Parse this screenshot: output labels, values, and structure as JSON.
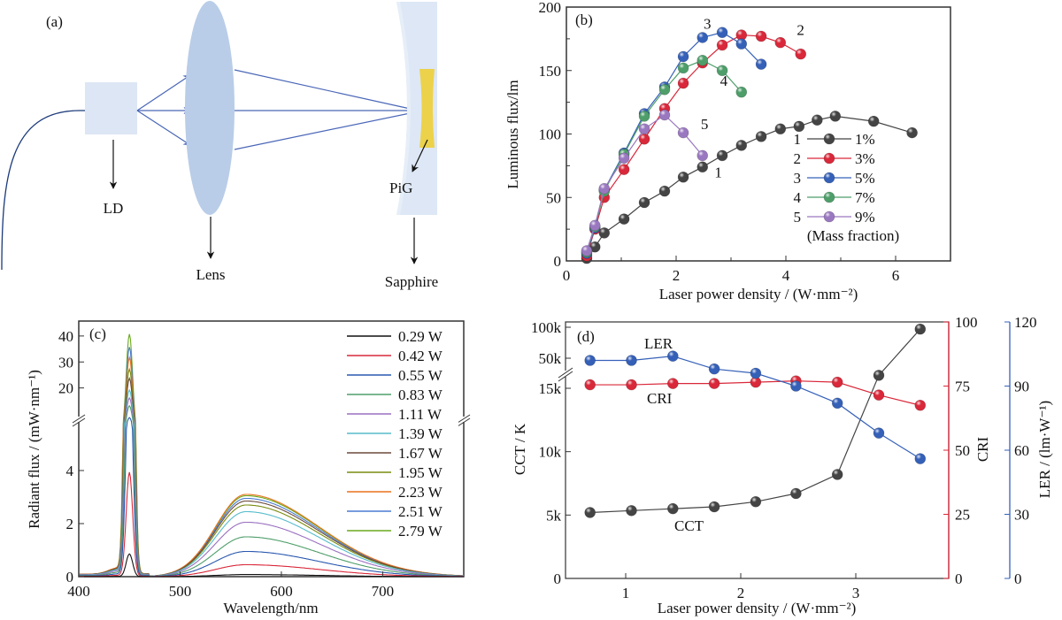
{
  "diagram": {
    "panel_label": "(a)",
    "labels": {
      "ld": "LD",
      "lens": "Lens",
      "pig": "PiG",
      "sapphire": "Sapphire"
    },
    "colors": {
      "ld_block": "#dce6f4",
      "lens": "#b9cde8",
      "sapphire": "#dde7f5",
      "pig": "#ecd24a",
      "beam": "#4a67b8",
      "fiber": "#1b3a7a"
    }
  },
  "chart_data": [
    {
      "id": "b",
      "panel_label": "(b)",
      "type": "line",
      "xlabel": "Laser power density / (W·mm⁻²)",
      "ylabel": "Luminous flux/lm",
      "xlim": [
        0,
        7
      ],
      "ylim": [
        0,
        200
      ],
      "xticks": [
        0,
        2,
        4,
        6
      ],
      "yticks": [
        0,
        50,
        100,
        150,
        200
      ],
      "legend_position": "right",
      "legend_note": "(Mass fraction)",
      "series": [
        {
          "id": "1",
          "name": "1%",
          "color": "#444444",
          "x": [
            0.37,
            0.52,
            0.69,
            1.05,
            1.42,
            1.79,
            2.13,
            2.48,
            2.84,
            3.19,
            3.55,
            3.9,
            4.24,
            4.57,
            4.9,
            5.6,
            6.3
          ],
          "y": [
            2,
            11,
            22,
            33,
            46,
            55,
            66,
            74,
            83,
            91,
            98,
            104,
            106,
            111,
            114,
            110,
            101
          ]
        },
        {
          "id": "2",
          "name": "3%",
          "color": "#d9283a",
          "x": [
            0.37,
            0.52,
            0.69,
            1.05,
            1.42,
            1.79,
            2.13,
            2.48,
            2.84,
            3.19,
            3.55,
            3.9,
            4.27
          ],
          "y": [
            4,
            25,
            50,
            72,
            96,
            120,
            140,
            156,
            170,
            178,
            177,
            172,
            163
          ]
        },
        {
          "id": "3",
          "name": "5%",
          "color": "#3560b8",
          "x": [
            0.37,
            0.52,
            0.69,
            1.05,
            1.42,
            1.79,
            2.13,
            2.48,
            2.84,
            3.19,
            3.55
          ],
          "y": [
            6,
            26,
            56,
            85,
            116,
            137,
            161,
            176,
            180,
            171,
            155
          ]
        },
        {
          "id": "4",
          "name": "7%",
          "color": "#4e9e6a",
          "x": [
            0.37,
            0.52,
            0.69,
            1.05,
            1.42,
            1.79,
            2.13,
            2.48,
            2.84,
            3.19
          ],
          "y": [
            7,
            27,
            55,
            84,
            114,
            135,
            152,
            158,
            150,
            133
          ]
        },
        {
          "id": "5",
          "name": "9%",
          "color": "#9a78c0",
          "x": [
            0.37,
            0.52,
            0.69,
            1.05,
            1.42,
            1.79,
            2.13,
            2.48
          ],
          "y": [
            8,
            28,
            57,
            81,
            104,
            115,
            101,
            83
          ]
        }
      ],
      "annotations": [
        {
          "text": "3",
          "x": 2.5,
          "y": 183
        },
        {
          "text": "2",
          "x": 4.2,
          "y": 178
        },
        {
          "text": "4",
          "x": 2.8,
          "y": 138
        },
        {
          "text": "5",
          "x": 2.45,
          "y": 104
        },
        {
          "text": "1",
          "x": 2.7,
          "y": 66
        }
      ]
    },
    {
      "id": "c",
      "panel_label": "(c)",
      "type": "line",
      "xlabel": "Wavelength/nm",
      "ylabel": "Radiant flux / (mW·nm⁻¹)",
      "xlim": [
        400,
        780
      ],
      "xticks": [
        400,
        500,
        600,
        700
      ],
      "ylim_lower": [
        0,
        5.8
      ],
      "ylim_upper": [
        10,
        42
      ],
      "yticks_lower": [
        0,
        2,
        4
      ],
      "yticks_upper": [
        20,
        30,
        40
      ],
      "axis_break": true,
      "legend_position": "top-right",
      "series": [
        {
          "name": "0.29 W",
          "color": "#111111",
          "peak_450": 0.85,
          "peak_570": 0.08
        },
        {
          "name": "0.42 W",
          "color": "#d9283a",
          "peak_450": 3.9,
          "peak_570": 0.45
        },
        {
          "name": "0.55 W",
          "color": "#2a58b0",
          "peak_450": 8.5,
          "peak_570": 0.95
        },
        {
          "name": "0.83 W",
          "color": "#4e9e6a",
          "peak_450": 13,
          "peak_570": 1.5
        },
        {
          "name": "1.11 W",
          "color": "#9a70c0",
          "peak_450": 16,
          "peak_570": 2.05
        },
        {
          "name": "1.39 W",
          "color": "#56bccb",
          "peak_450": 19,
          "peak_570": 2.45
        },
        {
          "name": "1.67 W",
          "color": "#6b4a3c",
          "peak_450": 23.5,
          "peak_570": 2.85
        },
        {
          "name": "1.95 W",
          "color": "#7a8c10",
          "peak_450": 27,
          "peak_570": 2.7
        },
        {
          "name": "2.23 W",
          "color": "#e8721c",
          "peak_450": 31.5,
          "peak_570": 3.1
        },
        {
          "name": "2.51 W",
          "color": "#4a7ad0",
          "peak_450": 35.5,
          "peak_570": 2.95
        },
        {
          "name": "2.79 W",
          "color": "#6aaa1e",
          "peak_450": 40.5,
          "peak_570": 3.05
        }
      ]
    },
    {
      "id": "d",
      "panel_label": "(d)",
      "type": "line",
      "xlabel": "Laser power density / (W·mm⁻²)",
      "ylabel_left": "CCT / K",
      "ylabel_right1": "CRI",
      "ylabel_right2": "LER / (lm·W⁻¹)",
      "xlim": [
        0.5,
        4.0
      ],
      "xticks": [
        1,
        2,
        3
      ],
      "yticks_left": [
        "0",
        "5k",
        "10k",
        "15k",
        "50k",
        "100k"
      ],
      "yticks_cri": [
        0,
        25,
        50,
        75,
        100
      ],
      "yticks_ler": [
        0,
        30,
        60,
        90,
        120
      ],
      "axis_break": true,
      "x": [
        0.69,
        1.05,
        1.41,
        1.77,
        2.13,
        2.48,
        2.84,
        3.2,
        3.56
      ],
      "series": [
        {
          "name": "CCT",
          "color": "#444444",
          "axis": "left",
          "values": [
            5200,
            5350,
            5500,
            5650,
            6050,
            6700,
            8200,
            30000,
            97000
          ]
        },
        {
          "name": "CRI",
          "color": "#d9283a",
          "axis": "cri",
          "values": [
            75.5,
            75.5,
            76.0,
            76.0,
            76.5,
            77.0,
            76.5,
            71.5,
            67.5
          ]
        },
        {
          "name": "LER",
          "color": "#3560b8",
          "axis": "ler",
          "values": [
            102,
            102,
            104,
            98,
            96,
            90,
            82,
            68,
            56
          ]
        }
      ],
      "annotations": [
        {
          "text": "LER"
        },
        {
          "text": "CRI"
        },
        {
          "text": "CCT"
        }
      ]
    }
  ]
}
